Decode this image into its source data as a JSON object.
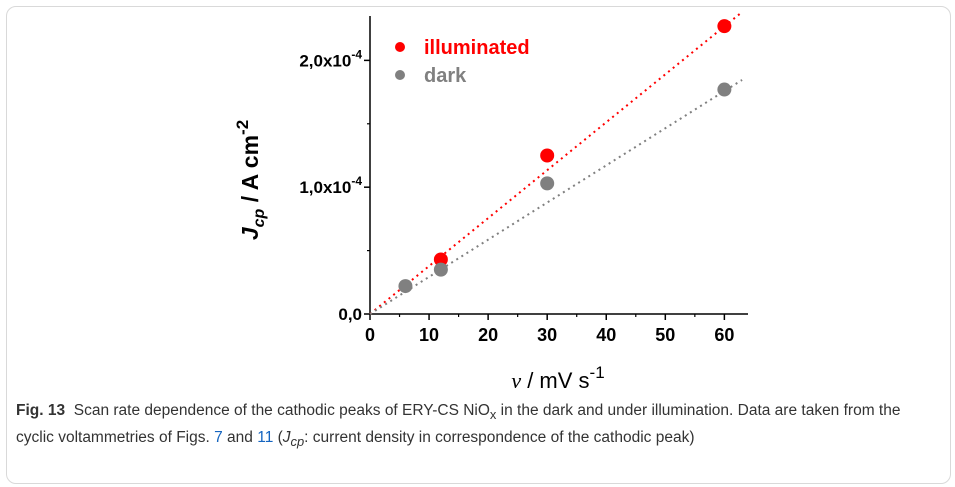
{
  "chart_data": {
    "type": "scatter",
    "x": [
      6,
      12,
      30,
      60
    ],
    "series": [
      {
        "name": "illuminated",
        "color": "#ff0000",
        "values": [
          null,
          4.3e-05,
          0.000125,
          0.000227
        ],
        "fit_slope": 3.78e-06
      },
      {
        "name": "dark",
        "color": "#808080",
        "values": [
          2.2e-05,
          3.5e-05,
          0.000103,
          0.000177
        ],
        "fit_slope": 2.93e-06
      }
    ],
    "xlabel_var": "v",
    "xlabel_unit": " / mV s",
    "xlabel_exp": "-1",
    "ylabel_var": "J",
    "ylabel_sub": "cp",
    "ylabel_unit": "  /  A cm",
    "ylabel_exp": "-2",
    "xlim": [
      0,
      64
    ],
    "ylim": [
      0,
      0.000235
    ],
    "xticks": [
      0,
      10,
      20,
      30,
      40,
      50,
      60
    ],
    "xtick_labels": [
      "0",
      "10",
      "20",
      "30",
      "40",
      "50",
      "60"
    ],
    "yticks": [
      0,
      0.0001,
      0.0002
    ],
    "ytick_labels": [
      {
        "mant": "0,0",
        "exp": ""
      },
      {
        "mant": "1,0x10",
        "exp": "-4"
      },
      {
        "mant": "2,0x10",
        "exp": "-4"
      }
    ],
    "legend_position": "top-left"
  },
  "caption": {
    "label": "Fig. 13",
    "part1": "Scan rate dependence of the cathodic peaks of ERY-CS NiO",
    "part1_sub": "x",
    "part2": " in the dark and under illumination. Data are taken from the cyclic voltammetries of Figs. ",
    "ref1": "7",
    "and": " and ",
    "ref2": "11",
    "part3": " (",
    "j": "J",
    "j_sub": "cp",
    "part4": ": current density in correspondence of the cathodic peak)"
  }
}
